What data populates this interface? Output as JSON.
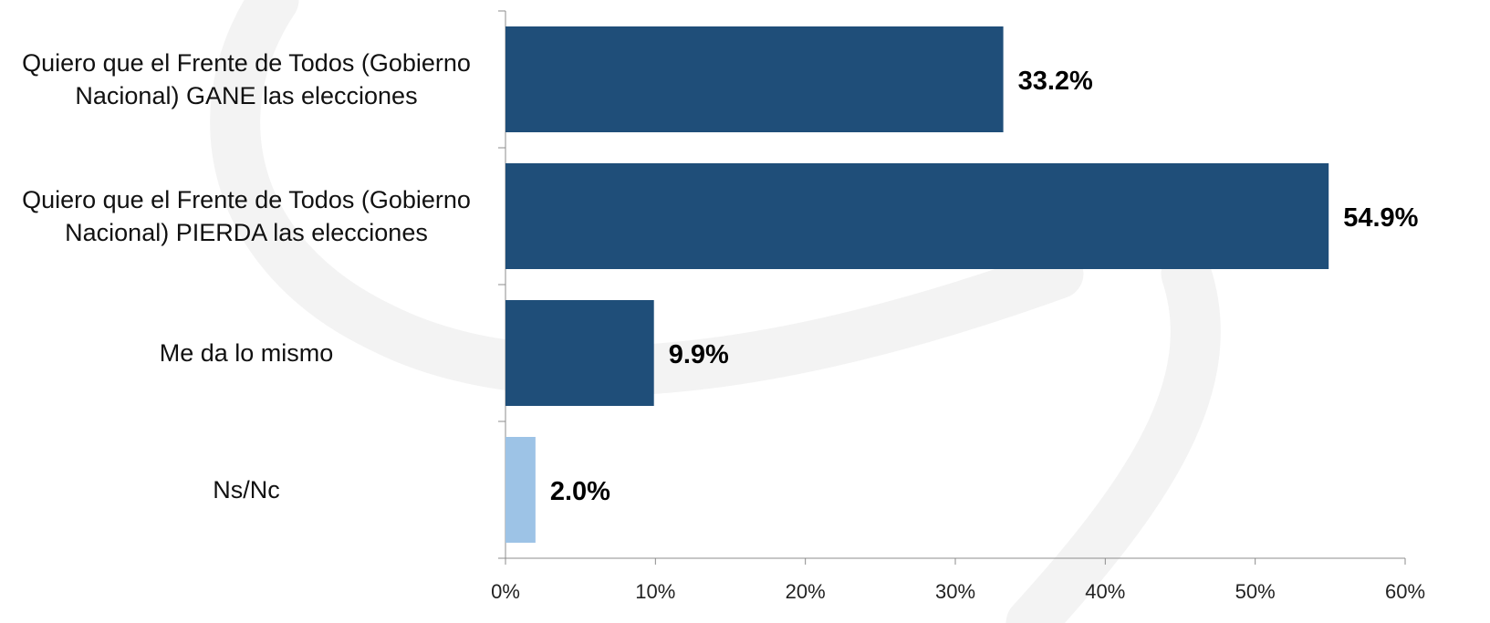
{
  "chart_data": {
    "type": "bar",
    "orientation": "horizontal",
    "categories": [
      [
        "Quiero que el Frente de Todos (Gobierno",
        "Nacional) GANE las elecciones"
      ],
      [
        "Quiero que el Frente de Todos (Gobierno",
        "Nacional) PIERDA las elecciones"
      ],
      [
        "Me da lo mismo"
      ],
      [
        "Ns/Nc"
      ]
    ],
    "values": [
      33.2,
      54.9,
      9.9,
      2.0
    ],
    "value_labels": [
      "33.2%",
      "54.9%",
      "9.9%",
      "2.0%"
    ],
    "bar_colors": [
      "#1f4e79",
      "#1f4e79",
      "#1f4e79",
      "#9dc3e6"
    ],
    "xlim": [
      0,
      60
    ],
    "xticks": [
      0,
      10,
      20,
      30,
      40,
      50,
      60
    ],
    "xtick_labels": [
      "0%",
      "10%",
      "20%",
      "30%",
      "40%",
      "50%",
      "60%"
    ],
    "grid": false,
    "title": "",
    "xlabel": "",
    "ylabel": ""
  }
}
